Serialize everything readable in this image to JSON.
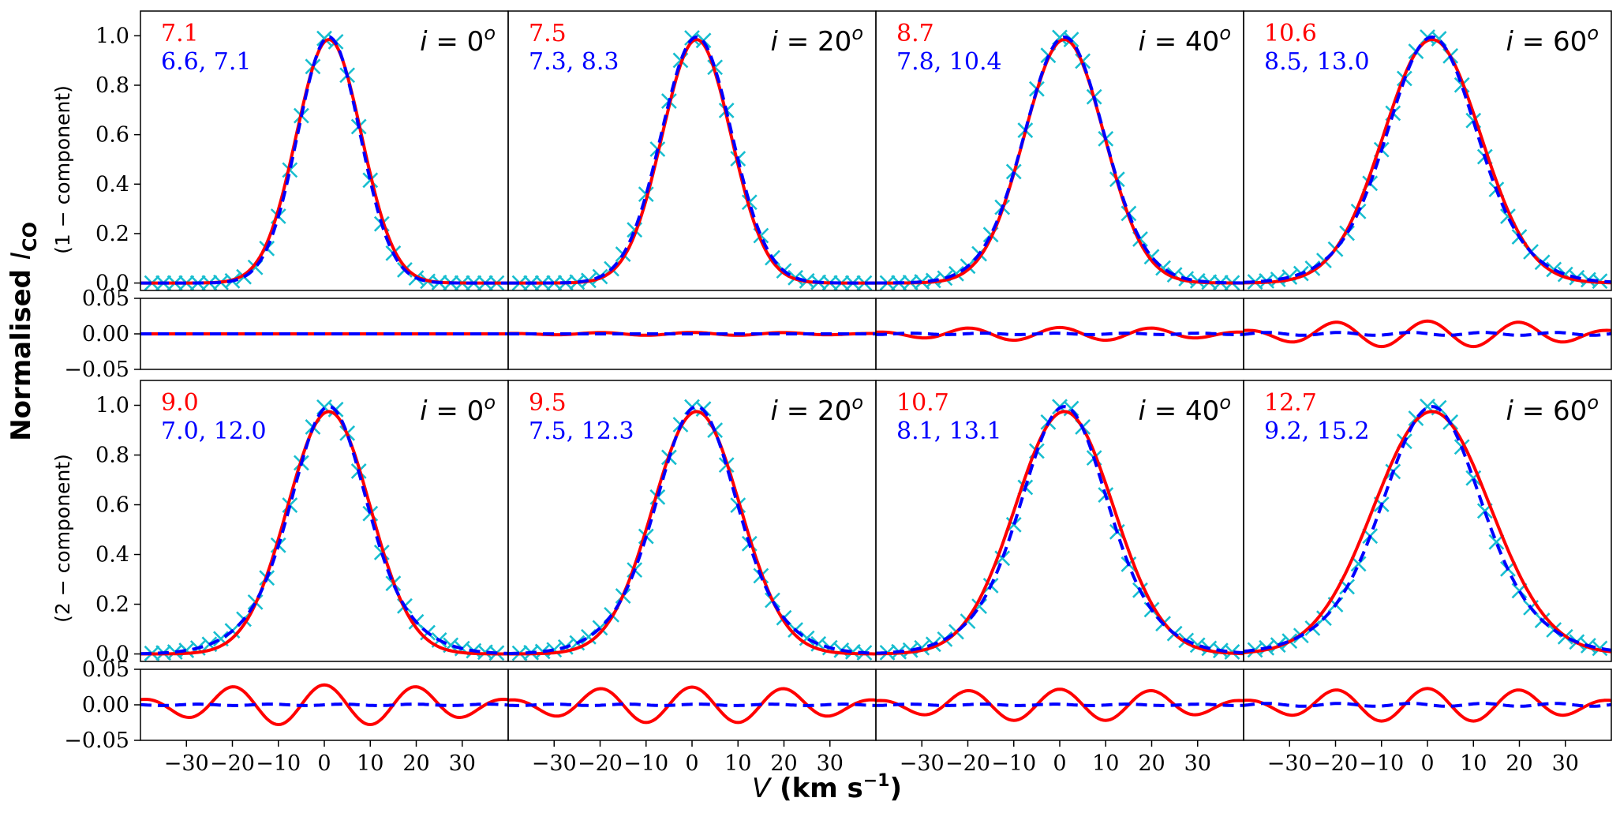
{
  "chart_data": {
    "type": "line",
    "ylabel": "Normalised I_CO",
    "ylabel_main": "Normalised ",
    "ylabel_sym": "I",
    "ylabel_sub": "CO",
    "xlabel": "V (km s^-1)",
    "xlabel_sym": "V",
    "xlabel_unit": " (km s",
    "xlabel_exp": "−1",
    "xlabel_close": ")",
    "row_labels": [
      "(1 − component)",
      "(2 − component)"
    ],
    "row_label_colors": [
      "#ff0000",
      "#0000ff"
    ],
    "inclinations": [
      "i = 0°",
      "i = 20°",
      "i = 40°",
      "i = 60°"
    ],
    "incl_values": [
      "0",
      "20",
      "40",
      "60"
    ],
    "x_ticks": [
      -30,
      -20,
      -10,
      0,
      10,
      20,
      30
    ],
    "x_tick_labels": [
      "−30",
      "−20",
      "−10",
      "0",
      "10",
      "20",
      "30"
    ],
    "xlim": [
      -40,
      40
    ],
    "main_ylim": [
      -0.03,
      1.1
    ],
    "main_yticks": [
      0.0,
      0.2,
      0.4,
      0.6,
      0.8,
      1.0
    ],
    "main_ytick_labels": [
      "0.0",
      "0.2",
      "0.4",
      "0.6",
      "0.8",
      "1.0"
    ],
    "resid_ylim": [
      -0.05,
      0.05
    ],
    "resid_yticks": [
      -0.05,
      0.0,
      0.05
    ],
    "resid_ytick_labels": [
      "−0.05",
      "0.00",
      "0.05"
    ],
    "series_styles": {
      "data": {
        "name": "data",
        "color": "#17becf",
        "marker": "x"
      },
      "one_component": {
        "name": "1-component fit",
        "color": "#ff0000",
        "line": "solid"
      },
      "two_component": {
        "name": "2-component fit",
        "color": "#0000ff",
        "line": "dashed"
      }
    },
    "rows": [
      {
        "row": "1-component",
        "panels": [
          {
            "inclination": 0,
            "label_red": "7.1",
            "label_blue": "6.6,  7.1",
            "sigma1": 7.1,
            "sigma2a": 6.6,
            "sigma2b": 7.1,
            "peak_v": 1.0,
            "resid_amp1": 0.0,
            "resid_amp2": 0.0
          },
          {
            "inclination": 20,
            "label_red": "7.5",
            "label_blue": "7.3,  8.3",
            "sigma1": 7.5,
            "sigma2a": 7.3,
            "sigma2b": 8.3,
            "peak_v": 1.0,
            "resid_amp1": 0.002,
            "resid_amp2": 0.0
          },
          {
            "inclination": 40,
            "label_red": "8.7",
            "label_blue": "7.8, 10.4",
            "sigma1": 8.7,
            "sigma2a": 7.8,
            "sigma2b": 10.4,
            "peak_v": 1.0,
            "resid_amp1": 0.009,
            "resid_amp2": 0.001
          },
          {
            "inclination": 60,
            "label_red": "10.6",
            "label_blue": " 8.5, 13.0",
            "sigma1": 10.6,
            "sigma2a": 8.5,
            "sigma2b": 13.0,
            "peak_v": 1.0,
            "resid_amp1": 0.018,
            "resid_amp2": 0.002
          }
        ]
      },
      {
        "row": "2-component",
        "panels": [
          {
            "inclination": 0,
            "label_red": "9.0",
            "label_blue": "7.0, 12.0",
            "sigma1": 9.0,
            "sigma2a": 7.0,
            "sigma2b": 12.0,
            "peak_v": 1.0,
            "resid_amp1": 0.028,
            "resid_amp2": 0.001
          },
          {
            "inclination": 20,
            "label_red": "9.5",
            "label_blue": "7.5, 12.3",
            "sigma1": 9.5,
            "sigma2a": 7.5,
            "sigma2b": 12.3,
            "peak_v": 1.0,
            "resid_amp1": 0.025,
            "resid_amp2": 0.001
          },
          {
            "inclination": 40,
            "label_red": "10.7",
            "label_blue": " 8.1, 13.1",
            "sigma1": 10.7,
            "sigma2a": 8.1,
            "sigma2b": 13.1,
            "peak_v": 1.0,
            "resid_amp1": 0.022,
            "resid_amp2": 0.001
          },
          {
            "inclination": 60,
            "label_red": "12.7",
            "label_blue": " 9.2, 15.2",
            "sigma1": 12.7,
            "sigma2a": 9.2,
            "sigma2b": 15.2,
            "peak_v": 1.0,
            "resid_amp1": 0.023,
            "resid_amp2": 0.002
          }
        ]
      }
    ]
  }
}
